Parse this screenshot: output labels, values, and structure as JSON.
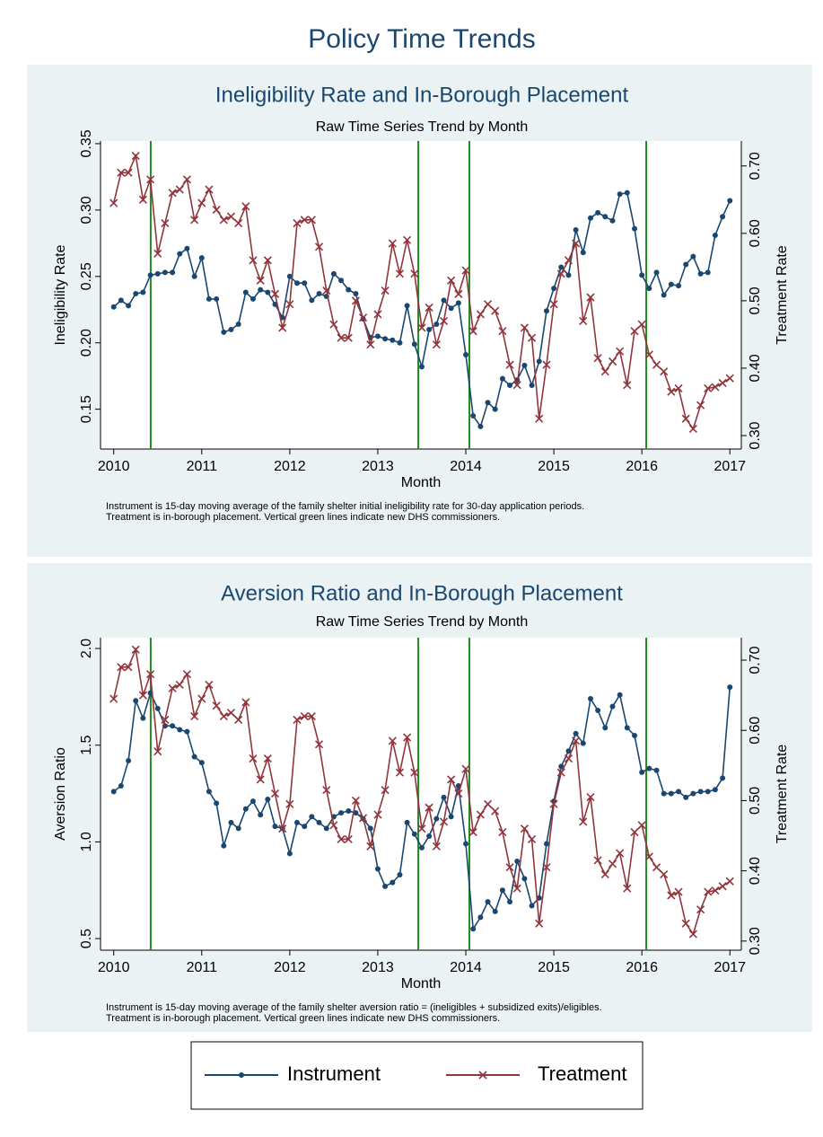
{
  "title": "Policy Time Trends",
  "chart_data": [
    {
      "type": "line",
      "title": "Ineligibility Rate and In-Borough Placement",
      "subtitle": "Raw Time Series Trend by Month",
      "xlabel": "Month",
      "ylabel": "Ineligibility Rate",
      "y2label": "Treatment Rate",
      "note": [
        "Instrument is 15-day moving average of the family shelter initial ineligibility rate for 30-day application periods.",
        "Treatment is in-borough placement. Vertical green lines indicate new DHS commissioners."
      ],
      "x": [
        2010,
        2010.083,
        2010.167,
        2010.25,
        2010.333,
        2010.417,
        2010.5,
        2010.583,
        2010.667,
        2010.75,
        2010.833,
        2010.917,
        2011,
        2011.083,
        2011.167,
        2011.25,
        2011.333,
        2011.417,
        2011.5,
        2011.583,
        2011.667,
        2011.75,
        2011.833,
        2011.917,
        2012,
        2012.083,
        2012.167,
        2012.25,
        2012.333,
        2012.417,
        2012.5,
        2012.583,
        2012.667,
        2012.75,
        2012.833,
        2012.917,
        2013,
        2013.083,
        2013.167,
        2013.25,
        2013.333,
        2013.417,
        2013.5,
        2013.583,
        2013.667,
        2013.75,
        2013.833,
        2013.917,
        2014,
        2014.083,
        2014.167,
        2014.25,
        2014.333,
        2014.417,
        2014.5,
        2014.583,
        2014.667,
        2014.75,
        2014.833,
        2014.917,
        2015,
        2015.083,
        2015.167,
        2015.25,
        2015.333,
        2015.417,
        2015.5,
        2015.583,
        2015.667,
        2015.75,
        2015.833,
        2015.917,
        2016,
        2016.083,
        2016.167,
        2016.25,
        2016.333,
        2016.417,
        2016.5,
        2016.583,
        2016.667,
        2016.75,
        2016.833,
        2016.917,
        2017
      ],
      "xlim": [
        2009.85,
        2017.13
      ],
      "xticks": [
        2010,
        2011,
        2012,
        2013,
        2014,
        2015,
        2016,
        2017
      ],
      "ylim": [
        0.12,
        0.352
      ],
      "yticks": [
        0.15,
        {
          "value": 0.2,
          "label": "0.20"
        },
        0.25,
        {
          "value": 0.3,
          "label": "0.30"
        },
        0.35
      ],
      "y2lim": [
        0.28,
        0.737
      ],
      "y2ticks": [
        {
          "value": 0.3,
          "label": "0.30"
        },
        {
          "value": 0.4,
          "label": "0.40"
        },
        {
          "value": 0.5,
          "label": "0.50"
        },
        {
          "value": 0.6,
          "label": "0.60"
        },
        {
          "value": 0.7,
          "label": "0.70"
        }
      ],
      "vlines": [
        2010.42,
        2013.46,
        2014.04,
        2016.05
      ],
      "vline_color": "#1e8c1e",
      "series": [
        {
          "name": "Instrument",
          "color": "#1a476f",
          "marker": "circle",
          "values": [
            0.227,
            0.232,
            0.228,
            0.237,
            0.238,
            0.251,
            0.252,
            0.253,
            0.253,
            0.267,
            0.271,
            0.25,
            0.264,
            0.233,
            0.233,
            0.208,
            0.21,
            0.214,
            0.238,
            0.233,
            0.24,
            0.238,
            0.229,
            0.219,
            0.25,
            0.245,
            0.245,
            0.232,
            0.237,
            0.235,
            0.252,
            0.247,
            0.24,
            0.237,
            0.218,
            0.204,
            0.205,
            0.203,
            0.202,
            0.2,
            0.228,
            0.199,
            0.182,
            0.21,
            0.214,
            0.232,
            0.226,
            0.23,
            0.191,
            0.145,
            0.137,
            0.155,
            0.15,
            0.173,
            0.168,
            0.172,
            0.183,
            0.168,
            0.186,
            0.224,
            0.241,
            0.257,
            0.251,
            0.285,
            0.268,
            0.294,
            0.298,
            0.295,
            0.292,
            0.312,
            0.313,
            0.286,
            0.251,
            0.241,
            0.253,
            0.236,
            0.244,
            0.243,
            0.259,
            0.265,
            0.252,
            0.253,
            0.281,
            0.295,
            0.307
          ]
        },
        {
          "name": "Treatment",
          "color": "#90353b",
          "marker": "x",
          "axis": "y2",
          "values": [
            0.645,
            0.69,
            0.69,
            0.715,
            0.65,
            0.68,
            0.57,
            0.615,
            0.66,
            0.665,
            0.68,
            0.62,
            0.645,
            0.665,
            0.635,
            0.62,
            0.625,
            0.615,
            0.64,
            0.56,
            0.53,
            0.56,
            0.51,
            0.46,
            0.495,
            0.615,
            0.62,
            0.62,
            0.58,
            0.515,
            0.465,
            0.445,
            0.445,
            0.5,
            0.475,
            0.435,
            0.48,
            0.515,
            0.585,
            0.54,
            0.59,
            0.54,
            0.46,
            0.49,
            0.435,
            0.47,
            0.53,
            0.51,
            0.545,
            0.455,
            0.48,
            0.495,
            0.485,
            0.455,
            0.405,
            0.375,
            0.46,
            0.445,
            0.325,
            0.405,
            0.495,
            0.54,
            0.56,
            0.585,
            0.47,
            0.505,
            0.415,
            0.395,
            0.41,
            0.425,
            0.375,
            0.455,
            0.465,
            0.42,
            0.405,
            0.395,
            0.365,
            0.37,
            0.325,
            0.31,
            0.345,
            0.37,
            0.372,
            0.378,
            0.385
          ]
        }
      ]
    },
    {
      "type": "line",
      "title": "Aversion Ratio and In-Borough Placement",
      "subtitle": "Raw Time Series Trend by Month",
      "xlabel": "Month",
      "ylabel": "Aversion Ratio",
      "y2label": "Treatment Rate",
      "note": [
        "Instrument is 15-day moving average of the family shelter aversion ratio = (ineligibles + subsidized exits)/eligibles.",
        "Treatment is in-borough placement. Vertical green lines indicate new DHS commissioners."
      ],
      "x": [
        2010,
        2010.083,
        2010.167,
        2010.25,
        2010.333,
        2010.417,
        2010.5,
        2010.583,
        2010.667,
        2010.75,
        2010.833,
        2010.917,
        2011,
        2011.083,
        2011.167,
        2011.25,
        2011.333,
        2011.417,
        2011.5,
        2011.583,
        2011.667,
        2011.75,
        2011.833,
        2011.917,
        2012,
        2012.083,
        2012.167,
        2012.25,
        2012.333,
        2012.417,
        2012.5,
        2012.583,
        2012.667,
        2012.75,
        2012.833,
        2012.917,
        2013,
        2013.083,
        2013.167,
        2013.25,
        2013.333,
        2013.417,
        2013.5,
        2013.583,
        2013.667,
        2013.75,
        2013.833,
        2013.917,
        2014,
        2014.083,
        2014.167,
        2014.25,
        2014.333,
        2014.417,
        2014.5,
        2014.583,
        2014.667,
        2014.75,
        2014.833,
        2014.917,
        2015,
        2015.083,
        2015.167,
        2015.25,
        2015.333,
        2015.417,
        2015.5,
        2015.583,
        2015.667,
        2015.75,
        2015.833,
        2015.917,
        2016,
        2016.083,
        2016.167,
        2016.25,
        2016.333,
        2016.417,
        2016.5,
        2016.583,
        2016.667,
        2016.75,
        2016.833,
        2016.917,
        2017
      ],
      "xlim": [
        2009.85,
        2017.13
      ],
      "xticks": [
        2010,
        2011,
        2012,
        2013,
        2014,
        2015,
        2016,
        2017
      ],
      "ylim": [
        0.44,
        2.056
      ],
      "yticks": [
        0.5,
        {
          "value": 1.0,
          "label": "1.0"
        },
        1.5,
        {
          "value": 2.0,
          "label": "2.0"
        }
      ],
      "y2lim": [
        0.287,
        0.732
      ],
      "y2ticks": [
        {
          "value": 0.3,
          "label": "0.30"
        },
        {
          "value": 0.4,
          "label": "0.40"
        },
        {
          "value": 0.5,
          "label": "0.50"
        },
        {
          "value": 0.6,
          "label": "0.60"
        },
        {
          "value": 0.7,
          "label": "0.70"
        }
      ],
      "vlines": [
        2010.42,
        2013.46,
        2014.04,
        2016.05
      ],
      "vline_color": "#1e8c1e",
      "series": [
        {
          "name": "Instrument",
          "color": "#1a476f",
          "marker": "circle",
          "values": [
            1.26,
            1.29,
            1.42,
            1.73,
            1.64,
            1.77,
            1.69,
            1.6,
            1.6,
            1.58,
            1.57,
            1.44,
            1.41,
            1.26,
            1.2,
            0.98,
            1.1,
            1.07,
            1.17,
            1.21,
            1.14,
            1.22,
            1.08,
            1.07,
            0.94,
            1.1,
            1.08,
            1.13,
            1.1,
            1.07,
            1.13,
            1.15,
            1.16,
            1.15,
            1.12,
            1.07,
            0.86,
            0.77,
            0.79,
            0.83,
            1.1,
            1.04,
            0.97,
            1.03,
            1.12,
            1.23,
            1.13,
            1.29,
            0.99,
            0.55,
            0.61,
            0.69,
            0.64,
            0.75,
            0.69,
            0.9,
            0.81,
            0.67,
            0.71,
            0.99,
            1.21,
            1.39,
            1.47,
            1.56,
            1.51,
            1.74,
            1.68,
            1.59,
            1.7,
            1.76,
            1.59,
            1.55,
            1.36,
            1.38,
            1.37,
            1.25,
            1.25,
            1.26,
            1.23,
            1.25,
            1.26,
            1.26,
            1.27,
            1.33,
            1.8
          ]
        },
        {
          "name": "Treatment",
          "color": "#90353b",
          "marker": "x",
          "axis": "y2",
          "values": [
            0.645,
            0.69,
            0.69,
            0.715,
            0.65,
            0.68,
            0.57,
            0.615,
            0.66,
            0.665,
            0.68,
            0.62,
            0.645,
            0.665,
            0.635,
            0.62,
            0.625,
            0.615,
            0.64,
            0.56,
            0.53,
            0.56,
            0.51,
            0.46,
            0.495,
            0.615,
            0.62,
            0.62,
            0.58,
            0.515,
            0.465,
            0.445,
            0.445,
            0.5,
            0.475,
            0.435,
            0.48,
            0.515,
            0.585,
            0.54,
            0.59,
            0.54,
            0.46,
            0.49,
            0.435,
            0.47,
            0.53,
            0.51,
            0.545,
            0.455,
            0.48,
            0.495,
            0.485,
            0.455,
            0.405,
            0.375,
            0.46,
            0.445,
            0.325,
            0.405,
            0.495,
            0.54,
            0.56,
            0.585,
            0.47,
            0.505,
            0.415,
            0.395,
            0.41,
            0.425,
            0.375,
            0.455,
            0.465,
            0.42,
            0.405,
            0.395,
            0.365,
            0.37,
            0.325,
            0.31,
            0.345,
            0.37,
            0.372,
            0.378,
            0.385
          ]
        }
      ]
    }
  ]
}
